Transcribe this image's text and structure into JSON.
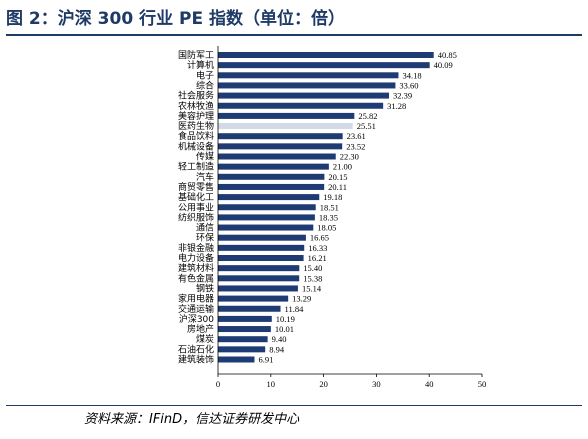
{
  "title": "图 2：沪深 300 行业 PE 指数（单位：倍）",
  "source": "资料来源：IFinD，信达证券研发中心",
  "colors": {
    "bar": "#1f3b73",
    "highlight": "#d0dae8",
    "title": "#1e3a66"
  },
  "chart_data": {
    "type": "bar",
    "orientation": "horizontal",
    "title": "图 2：沪深 300 行业 PE 指数（单位：倍）",
    "xlabel": "",
    "ylabel": "",
    "xlim": [
      0,
      50
    ],
    "xticks": [
      0,
      10,
      20,
      30,
      40,
      50
    ],
    "grid": false,
    "legend": "none",
    "highlight_category": "医药生物",
    "categories": [
      "国防军工",
      "计算机",
      "电子",
      "综合",
      "社会服务",
      "农林牧渔",
      "美容护理",
      "医药生物",
      "食品饮料",
      "机械设备",
      "传媒",
      "轻工制造",
      "汽车",
      "商贸零售",
      "基础化工",
      "公用事业",
      "纺织服饰",
      "通信",
      "环保",
      "非银金融",
      "电力设备",
      "建筑材料",
      "有色金属",
      "钢铁",
      "家用电器",
      "交通运输",
      "沪深300",
      "房地产",
      "煤炭",
      "石油石化",
      "建筑装饰"
    ],
    "values": [
      40.85,
      40.09,
      34.18,
      33.6,
      32.39,
      31.28,
      25.82,
      25.51,
      23.61,
      23.52,
      22.3,
      21.0,
      20.15,
      20.11,
      19.18,
      18.51,
      18.35,
      18.05,
      16.65,
      16.33,
      16.21,
      15.4,
      15.38,
      15.14,
      13.29,
      11.84,
      10.19,
      10.01,
      9.4,
      8.94,
      6.91
    ],
    "value_labels": [
      "40.85",
      "40.09",
      "34.18",
      "33.60",
      "32.39",
      "31.28",
      "25.82",
      "25.51",
      "23.61",
      "23.52",
      "22.30",
      "21.00",
      "20.15",
      "20.11",
      "19.18",
      "18.51",
      "18.35",
      "18.05",
      "16.65",
      "16.33",
      "16.21",
      "15.40",
      "15.38",
      "15.14",
      "13.29",
      "11.84",
      "10.19",
      "10.01",
      "9.40",
      "8.94",
      "6.91"
    ]
  }
}
